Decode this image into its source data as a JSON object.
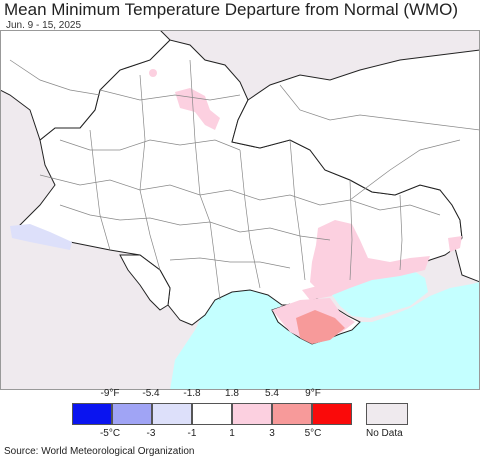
{
  "title": "Mean Minimum Temperature Departure from Normal (WMO)",
  "subtitle": "Jun. 9 - 15, 2025",
  "legend": {
    "fahrenheit_ticks": [
      "-9°F",
      "-5.4",
      "-1.8",
      "1.8",
      "5.4",
      "9°F"
    ],
    "celsius_ticks": [
      "-5°C",
      "-3",
      "-1",
      "1",
      "3",
      "5°C"
    ],
    "colors": [
      "#0a14f0",
      "#a0a4f5",
      "#dde0fa",
      "#ffffff",
      "#fcd0e0",
      "#f79a9a",
      "#fa0a0a"
    ],
    "nodata_label": "No Data",
    "nodata_color": "#efeaee"
  },
  "map_colors": {
    "land": "#ffffff",
    "outside": "#efeaee",
    "sea": "#c4ffff",
    "warm_light": "#fcd0e0",
    "warm_medium": "#f79a9a",
    "cool_light": "#dde0fa",
    "border": "#222222",
    "subborder": "#888888"
  },
  "source": "Source: World Meteorological Organization"
}
